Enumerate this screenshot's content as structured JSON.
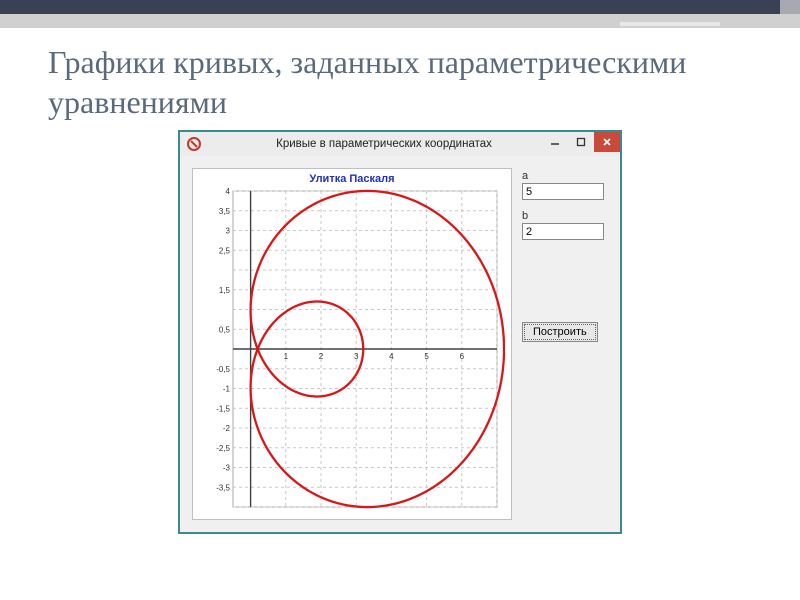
{
  "slide": {
    "title": "Графики кривых, заданных параметрическими уравнениями"
  },
  "app": {
    "window_title": "Кривые в параметрических координатах",
    "titlebar_bg": "#ececec",
    "close_btn_bg": "#c84a3b",
    "border_color": "#3a8a8f"
  },
  "chart": {
    "type": "parametric-curve",
    "title": "Улитка Паскаля",
    "title_color": "#2030c0",
    "title_fontsize": 11,
    "curve_color": "#d81818",
    "curve_width": 2.3,
    "background_color": "#ffffff",
    "grid_color": "#c8c8c8",
    "grid_dash": "3,3",
    "axis_color": "#404040",
    "xlim": [
      -0.5,
      7.0
    ],
    "ylim": [
      -4.0,
      4.0
    ],
    "xtick_step": 1,
    "ytick_step": 0.5,
    "xticks": [
      1,
      2,
      3,
      4,
      5,
      6
    ],
    "yticks_labeled": [
      -3.5,
      -3,
      -2.5,
      -2,
      -1.5,
      -1,
      -0.5,
      0.5,
      1.5,
      2.5,
      3,
      3.5,
      4
    ],
    "tick_fontsize": 8,
    "params": {
      "a": 5,
      "b": 2
    }
  },
  "form": {
    "label_a": "a",
    "value_a": "5",
    "label_b": "b",
    "value_b": "2",
    "plot_button": "Построить"
  },
  "colors": {
    "slide_title": "#5a6a7a",
    "top_band": "#3a4154",
    "ribbon_shadow": "#d0d0d0"
  }
}
